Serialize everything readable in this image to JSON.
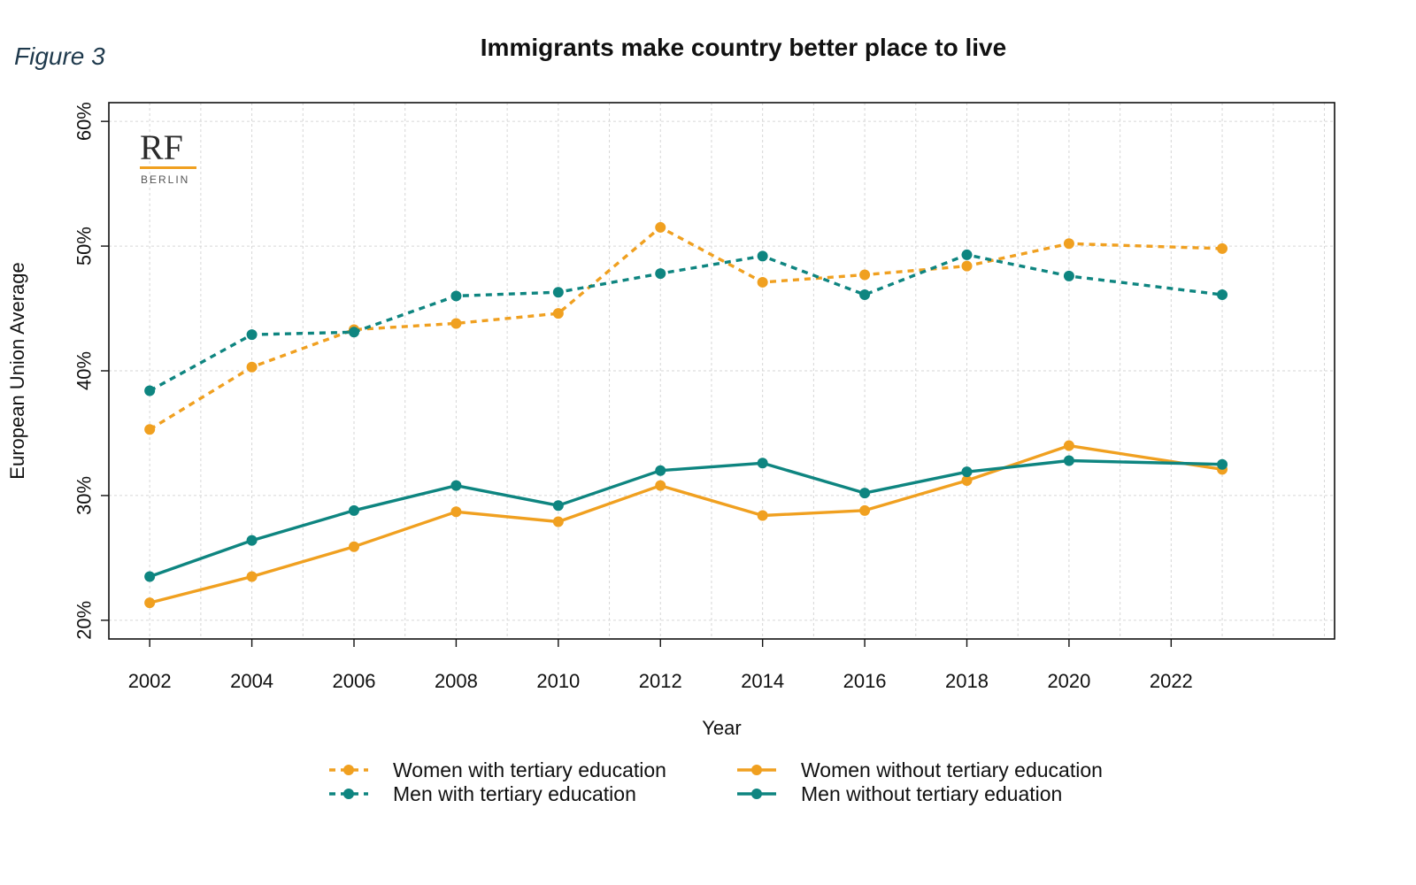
{
  "figure_label": "Figure 3",
  "logo": {
    "main": "RF",
    "sub": "BERLIN",
    "accent_color": "#f0a020"
  },
  "chart_data": {
    "type": "line",
    "title": "Immigrants make country better place to live",
    "xlabel": "Year",
    "ylabel": "European Union Average",
    "xlim": [
      2001.2,
      2025.2
    ],
    "ylim": [
      18.5,
      61.5
    ],
    "x_ticks": [
      2002,
      2004,
      2006,
      2008,
      2010,
      2012,
      2014,
      2016,
      2018,
      2020,
      2022
    ],
    "x_tick_labels": [
      "2002",
      "2004",
      "2006",
      "2008",
      "2010",
      "2012",
      "2014",
      "2016",
      "2018",
      "2020",
      "2022"
    ],
    "y_ticks": [
      20,
      30,
      40,
      50,
      60
    ],
    "y_tick_labels": [
      "20%",
      "30%",
      "40%",
      "50%",
      "60%"
    ],
    "grid": true,
    "legend_position": "bottom",
    "x": [
      2002,
      2004,
      2006,
      2008,
      2010,
      2012,
      2014,
      2016,
      2018,
      2020,
      2023
    ],
    "series": [
      {
        "name": "Women with tertiary education",
        "color": "#f0a020",
        "style": "dashed",
        "values": [
          35.3,
          40.3,
          43.3,
          43.8,
          44.6,
          51.5,
          47.1,
          47.7,
          48.4,
          50.2,
          49.8
        ]
      },
      {
        "name": "Men with tertiary education",
        "color": "#0e8580",
        "style": "dashed",
        "values": [
          38.4,
          42.9,
          43.1,
          46.0,
          46.3,
          47.8,
          49.2,
          46.1,
          49.3,
          47.6,
          46.1
        ]
      },
      {
        "name": "Women without tertiary education",
        "color": "#f0a020",
        "style": "solid",
        "values": [
          21.4,
          23.5,
          25.9,
          28.7,
          27.9,
          30.8,
          28.4,
          28.8,
          31.2,
          34.0,
          32.1
        ]
      },
      {
        "name": "Men without tertiary eduation",
        "color": "#0e8580",
        "style": "solid",
        "values": [
          23.5,
          26.4,
          28.8,
          30.8,
          29.2,
          32.0,
          32.6,
          30.2,
          31.9,
          32.8,
          32.5
        ]
      }
    ]
  }
}
